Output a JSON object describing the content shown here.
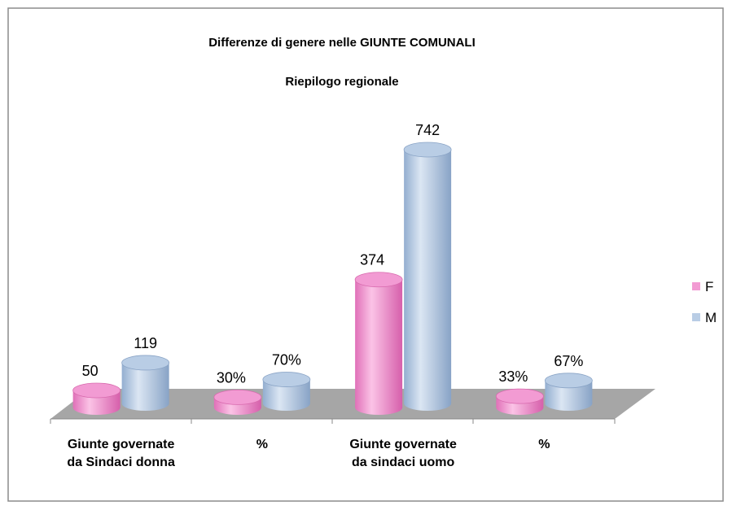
{
  "chart_data": {
    "type": "bar3d",
    "title": "Differenze di genere nelle GIUNTE COMUNALI",
    "subtitle": "Riepilogo regionale",
    "categories": [
      "Giunte governate da Sindaci donna",
      "%",
      "Giunte governate da sindaci uomo",
      "%"
    ],
    "series": [
      {
        "name": "F",
        "color": "#f29bd3",
        "values": [
          50,
          30,
          374,
          33
        ],
        "value_labels": [
          "50",
          "30%",
          "374",
          "33%"
        ]
      },
      {
        "name": "M",
        "color": "#b9cde5",
        "values": [
          119,
          70,
          742,
          67
        ],
        "value_labels": [
          "119",
          "70%",
          "742",
          "67%"
        ]
      }
    ],
    "legend": "right"
  }
}
